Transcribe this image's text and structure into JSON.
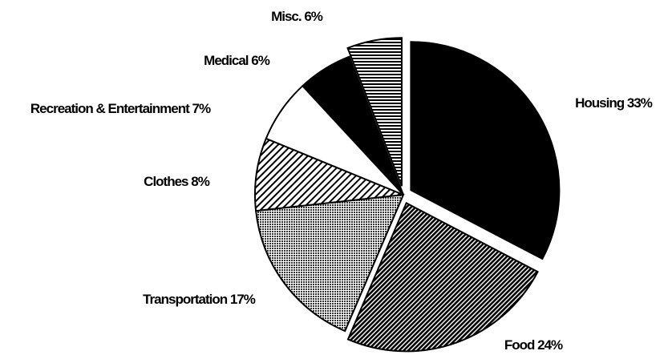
{
  "chart_data": {
    "type": "pie",
    "categories": [
      "Housing",
      "Food",
      "Transportation",
      "Clothes",
      "Recreation & Entertainment",
      "Medical",
      "Misc."
    ],
    "values": [
      33,
      24,
      17,
      8,
      7,
      6,
      6
    ],
    "value_labels": [
      "33%",
      "24%",
      "17%",
      "8%",
      "7%",
      "6%",
      "6%"
    ],
    "patterns": [
      "solid",
      "hatch-dense",
      "stipple",
      "hatch",
      "white",
      "solid",
      "horizontal"
    ],
    "exploded": [
      true,
      true,
      false,
      false,
      false,
      false,
      true
    ]
  }
}
